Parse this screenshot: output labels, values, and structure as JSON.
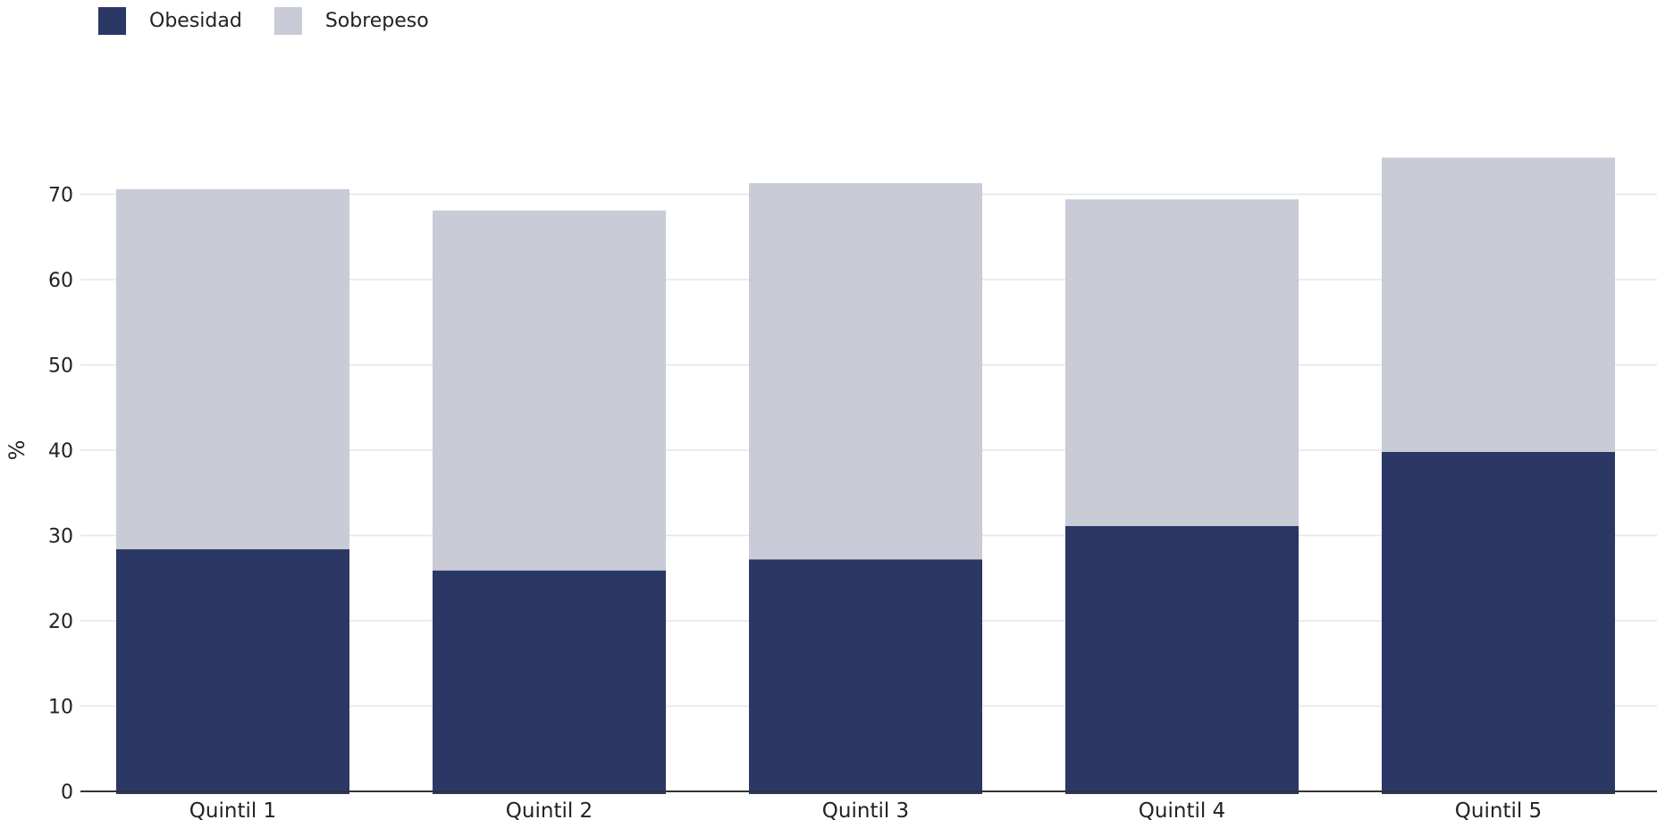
{
  "colors": {
    "obesidad": "#2b3764",
    "sobrepeso": "#c9cbd7",
    "grid": "#e6e6e6",
    "axis": "#333333",
    "text": "#222222"
  },
  "legend": {
    "items": [
      {
        "label": "Obesidad",
        "color": "#2b3764"
      },
      {
        "label": "Sobrepeso",
        "color": "#c9cbd7"
      }
    ],
    "position": "top-left"
  },
  "chart_data": {
    "type": "bar",
    "stacked": true,
    "title": "",
    "xlabel": "",
    "ylabel": "%",
    "categories": [
      "Quintil 1",
      "Quintil 2",
      "Quintil 3",
      "Quintil 4",
      "Quintil 5"
    ],
    "series": [
      {
        "name": "Obesidad",
        "values": [
          28.4,
          25.9,
          27.2,
          31.1,
          39.8
        ]
      },
      {
        "name": "Sobrepeso",
        "values": [
          42.2,
          42.2,
          44.1,
          38.3,
          34.5
        ]
      }
    ],
    "ylim": [
      0,
      80
    ],
    "yticks": [
      0,
      10,
      20,
      30,
      40,
      50,
      60,
      70
    ],
    "grid": true
  }
}
